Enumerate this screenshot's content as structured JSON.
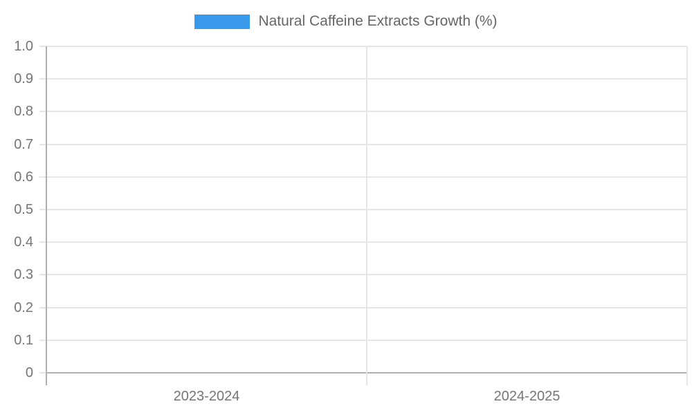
{
  "legend": {
    "label": "Natural Caffeine Extracts Growth (%)"
  },
  "chart_data": {
    "type": "bar",
    "title": "",
    "categories": [
      "2023-2024",
      "2024-2025"
    ],
    "series": [
      {
        "name": "Natural Caffeine Extracts Growth (%)",
        "color": "#3b99ec",
        "values": [
          0,
          0
        ]
      }
    ],
    "ylim": [
      0,
      1
    ],
    "yticks": [
      {
        "value": 1.0,
        "label": "1.0"
      },
      {
        "value": 0.9,
        "label": "0.9"
      },
      {
        "value": 0.8,
        "label": "0.8"
      },
      {
        "value": 0.7,
        "label": "0.7"
      },
      {
        "value": 0.6,
        "label": "0.6"
      },
      {
        "value": 0.5,
        "label": "0.5"
      },
      {
        "value": 0.4,
        "label": "0.4"
      },
      {
        "value": 0.3,
        "label": "0.3"
      },
      {
        "value": 0.2,
        "label": "0.2"
      },
      {
        "value": 0.1,
        "label": "0.1"
      },
      {
        "value": 0,
        "label": "0"
      }
    ],
    "grid": true,
    "legend_position": "top"
  },
  "colors": {
    "series_blue": "#3b99ec",
    "gridline": "#e6e6e6",
    "axis_line": "#afafaf",
    "tick_label": "#757575",
    "legend_text": "#666666"
  }
}
